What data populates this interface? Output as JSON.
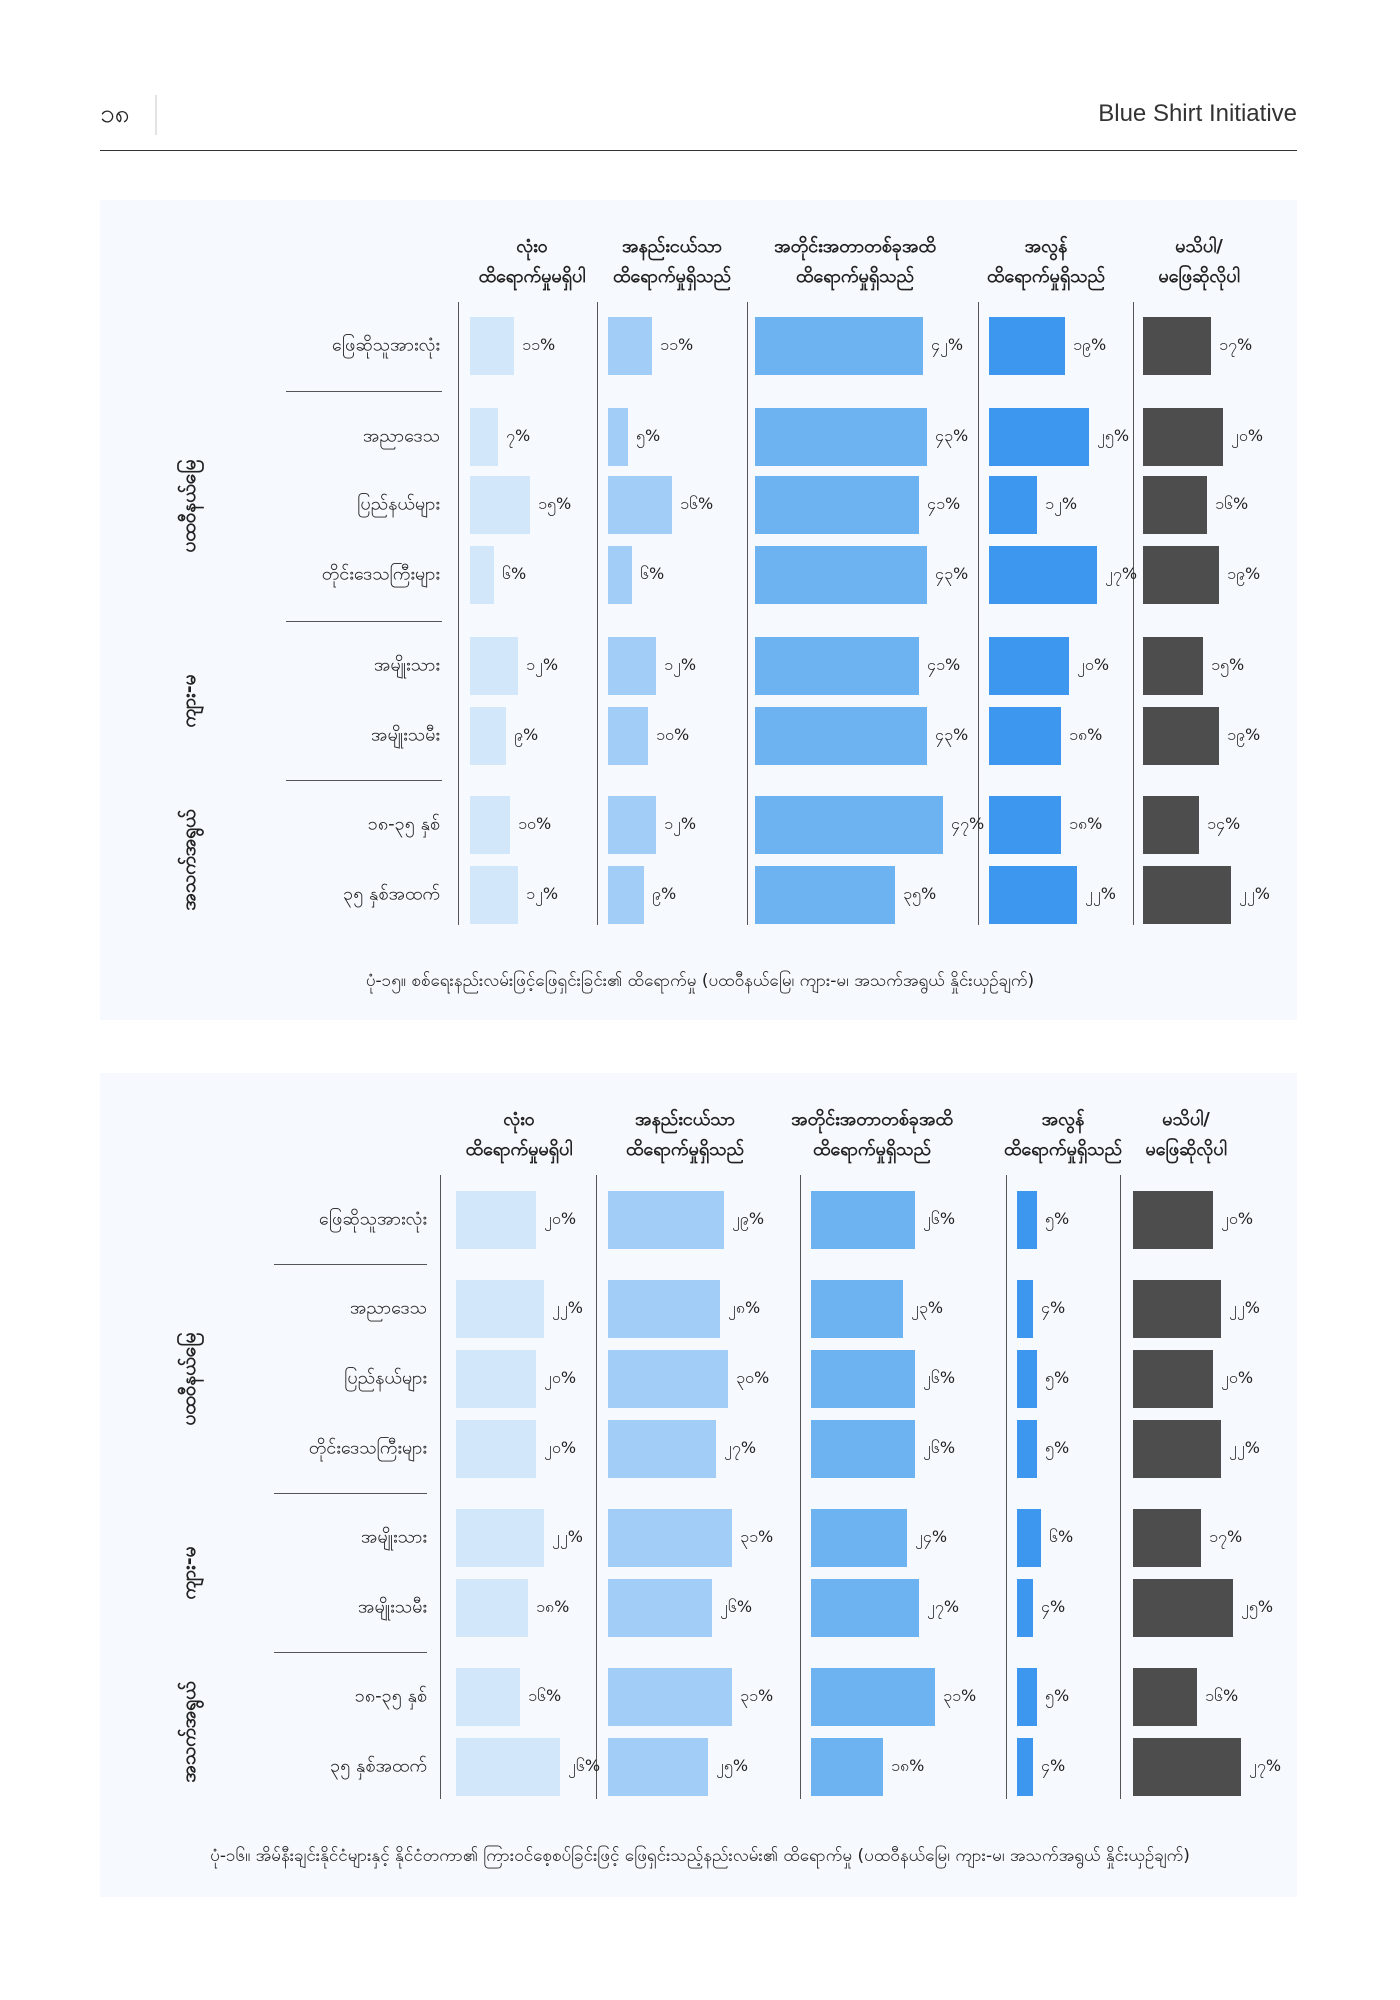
{
  "header": {
    "page_number": "၁၈",
    "publisher": "Blue Shirt Initiative"
  },
  "chart_data": [
    {
      "type": "bar",
      "orientation": "horizontal",
      "caption": "ပုံ-၁၅။ စစ်ရေးနည်းလမ်းဖြင့်ဖြေရှင်းခြင်း၏ ထိရောက်မှု (ပထဝီနယ်မြေ၊ ကျား-မ၊ အသက်အရွယ် နှိုင်းယှဉ်ချက်)",
      "categories": [
        "ဖြေဆိုသူအားလုံး",
        "အညာဒေသ",
        "ပြည်နယ်များ",
        "တိုင်းဒေသကြီးများ",
        "အမျိုးသား",
        "အမျိုးသမီး",
        "၁၈-၃၅ နှစ်",
        "၃၅ နှစ်အထက်"
      ],
      "groups": [
        "ပထဝီနယ်မြေ",
        "ကျား-မ",
        "အသက်အရွယ်"
      ],
      "series": [
        {
          "name": "လုံးဝ\nထိရောက်မှုမရှိပါ",
          "color": "#d3e7fb",
          "values": [
            11,
            7,
            15,
            6,
            12,
            9,
            10,
            12
          ],
          "value_labels": [
            "၁၁%",
            "၇%",
            "၁၅%",
            "၆%",
            "၁၂%",
            "၉%",
            "၁၀%",
            "၁၂%"
          ]
        },
        {
          "name": "အနည်းငယ်သာ\nထိရောက်မှုရှိသည်",
          "color": "#a2cdf7",
          "values": [
            11,
            5,
            16,
            6,
            12,
            10,
            12,
            9
          ],
          "value_labels": [
            "၁၁%",
            "၅%",
            "၁၆%",
            "၆%",
            "၁၂%",
            "၁၀%",
            "၁၂%",
            "၉%"
          ]
        },
        {
          "name": "အတိုင်းအတာတစ်ခုအထိ\nထိရောက်မှုရှိသည်",
          "color": "#6db3f2",
          "values": [
            42,
            43,
            41,
            43,
            41,
            43,
            47,
            35
          ],
          "value_labels": [
            "၄၂%",
            "၄၃%",
            "၄၁%",
            "၄၃%",
            "၄၁%",
            "၄၃%",
            "၄၇%",
            "၃၅%"
          ]
        },
        {
          "name": "အလွန်\nထိရောက်မှုရှိသည်",
          "color": "#3d97ee",
          "values": [
            19,
            25,
            12,
            27,
            20,
            18,
            18,
            22
          ],
          "value_labels": [
            "၁၉%",
            "၂၅%",
            "၁၂%",
            "၂၇%",
            "၂၀%",
            "၁၈%",
            "၁၈%",
            "၂၂%"
          ]
        },
        {
          "name": "မသိပါ/\nမဖြေဆိုလိုပါ",
          "color": "#4d4d4d",
          "values": [
            17,
            20,
            16,
            19,
            15,
            19,
            14,
            22
          ],
          "value_labels": [
            "၁၇%",
            "၂၀%",
            "၁၆%",
            "၁၉%",
            "၁၅%",
            "၁၉%",
            "၁၄%",
            "၂၂%"
          ]
        }
      ]
    },
    {
      "type": "bar",
      "orientation": "horizontal",
      "caption": "ပုံ-၁၆။ အိမ်နီးချင်းနိုင်ငံများနှင့် နိုင်ငံတကာ၏ ကြားဝင်စေ့စပ်ခြင်းဖြင့် ဖြေရှင်းသည့်နည်းလမ်း၏ ထိရောက်မှု (ပထဝီနယ်မြေ၊ ကျား-မ၊ အသက်အရွယ် နှိုင်းယှဉ်ချက်)",
      "categories": [
        "ဖြေဆိုသူအားလုံး",
        "အညာဒေသ",
        "ပြည်နယ်များ",
        "တိုင်းဒေသကြီးများ",
        "အမျိုးသား",
        "အမျိုးသမီး",
        "၁၈-၃၅ နှစ်",
        "၃၅ နှစ်အထက်"
      ],
      "groups": [
        "ပထဝီနယ်မြေ",
        "ကျား-မ",
        "အသက်အရွယ်"
      ],
      "series": [
        {
          "name": "လုံးဝ\nထိရောက်မှုမရှိပါ",
          "color": "#d3e7fb",
          "values": [
            20,
            22,
            20,
            20,
            22,
            18,
            16,
            26
          ],
          "value_labels": [
            "၂၀%",
            "၂၂%",
            "၂၀%",
            "၂၀%",
            "၂၂%",
            "၁၈%",
            "၁၆%",
            "၂၆%"
          ]
        },
        {
          "name": "အနည်းငယ်သာ\nထိရောက်မှုရှိသည်",
          "color": "#a2cdf7",
          "values": [
            29,
            28,
            30,
            27,
            31,
            26,
            31,
            25
          ],
          "value_labels": [
            "၂၉%",
            "၂၈%",
            "၃၀%",
            "၂၇%",
            "၃၁%",
            "၂၆%",
            "၃၁%",
            "၂၅%"
          ]
        },
        {
          "name": "အတိုင်းအတာတစ်ခုအထိ\nထိရောက်မှုရှိသည်",
          "color": "#6db3f2",
          "values": [
            26,
            23,
            26,
            26,
            24,
            27,
            31,
            18
          ],
          "value_labels": [
            "၂၆%",
            "၂၃%",
            "၂၆%",
            "၂၆%",
            "၂၄%",
            "၂၇%",
            "၃၁%",
            "၁၈%"
          ]
        },
        {
          "name": "အလွန်\nထိရောက်မှုရှိသည်",
          "color": "#3d97ee",
          "values": [
            5,
            4,
            5,
            5,
            6,
            4,
            5,
            4
          ],
          "value_labels": [
            "၅%",
            "၄%",
            "၅%",
            "၅%",
            "၆%",
            "၄%",
            "၅%",
            "၄%"
          ]
        },
        {
          "name": "မသိပါ/\nမဖြေဆိုလိုပါ",
          "color": "#4d4d4d",
          "values": [
            20,
            22,
            20,
            22,
            17,
            25,
            16,
            27
          ],
          "value_labels": [
            "၂၀%",
            "၂၂%",
            "၂၀%",
            "၂၂%",
            "၁၇%",
            "၂၅%",
            "၁၆%",
            "၂၇%"
          ]
        }
      ]
    }
  ]
}
